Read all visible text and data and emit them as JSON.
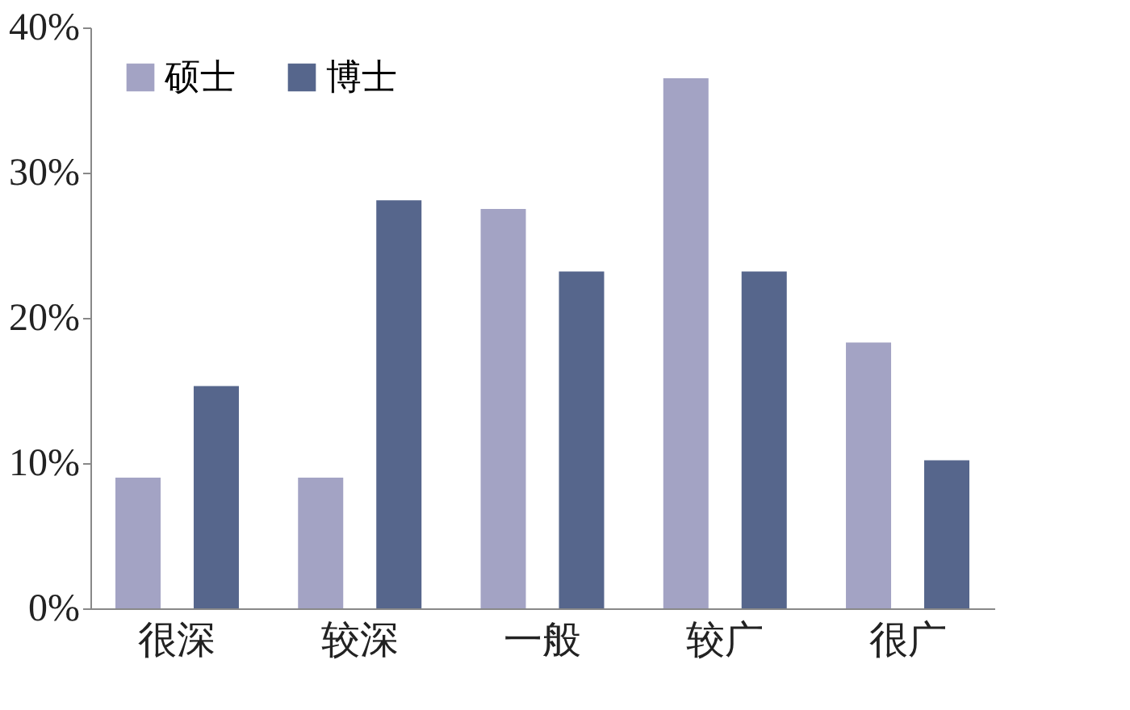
{
  "chart_data": {
    "type": "bar",
    "categories": [
      "很深",
      "较深",
      "一般",
      "较广",
      "很广"
    ],
    "series": [
      {
        "name": "硕士",
        "color": "#a3a3c4",
        "values": [
          9.0,
          9.0,
          27.5,
          36.5,
          18.3
        ]
      },
      {
        "name": "博士",
        "color": "#56668c",
        "values": [
          15.3,
          28.1,
          23.2,
          23.2,
          10.2
        ]
      }
    ],
    "ylim": [
      0,
      40
    ],
    "yticks": [
      {
        "value": 0,
        "label": "0%"
      },
      {
        "value": 10,
        "label": "10%"
      },
      {
        "value": 20,
        "label": "20%"
      },
      {
        "value": 30,
        "label": "30%"
      },
      {
        "value": 40,
        "label": "40%"
      }
    ],
    "grid": false,
    "legend": "top left"
  }
}
